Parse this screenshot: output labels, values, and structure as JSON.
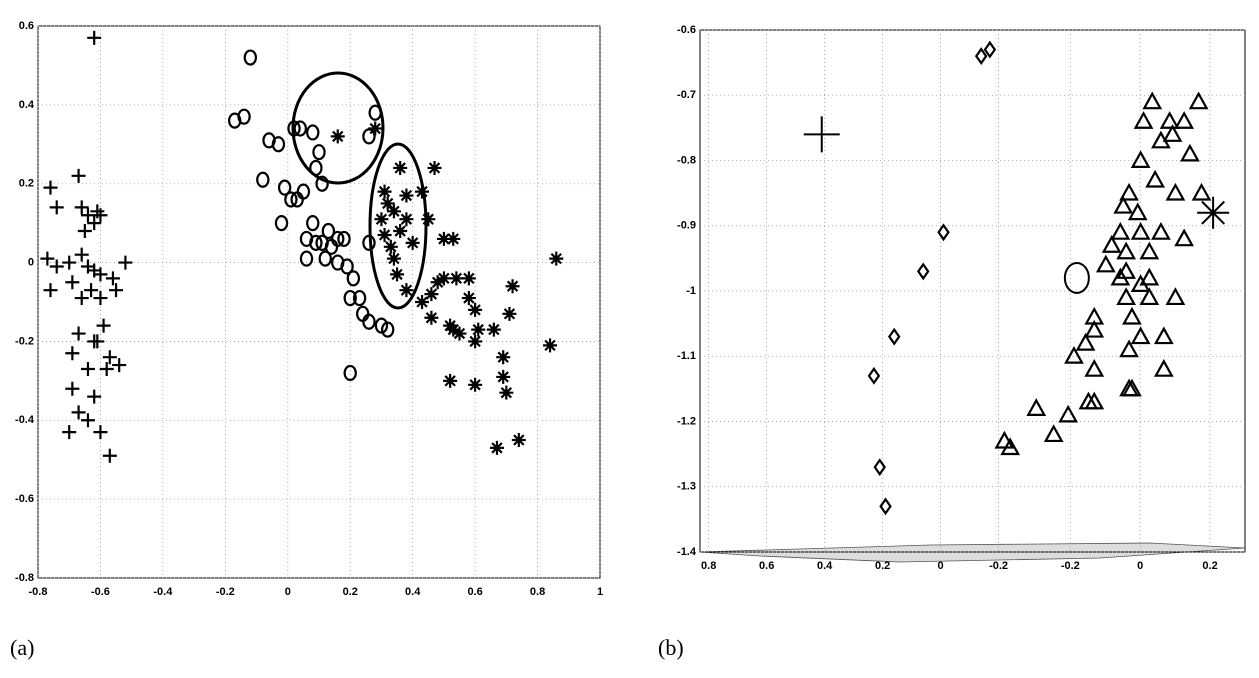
{
  "chart_data": [
    {
      "type": "scatter",
      "label": "(a)",
      "xlim": [
        -0.8,
        1
      ],
      "xticks": [
        -0.8,
        -0.6,
        -0.4,
        -0.2,
        0,
        0.2,
        0.4,
        0.6,
        0.8,
        1
      ],
      "ylim": [
        -0.8,
        0.6
      ],
      "yticks": [
        -0.8,
        -0.6,
        -0.4,
        -0.2,
        0,
        0.2,
        0.4,
        0.6
      ],
      "grid": true,
      "series": [
        {
          "marker": "plus",
          "color": "#000000",
          "size": 7,
          "x": [
            -0.62,
            -0.76,
            -0.74,
            -0.67,
            -0.66,
            -0.64,
            -0.61,
            -0.62,
            -0.65,
            -0.6,
            -0.77,
            -0.74,
            -0.7,
            -0.66,
            -0.64,
            -0.62,
            -0.6,
            -0.56,
            -0.52,
            -0.76,
            -0.69,
            -0.66,
            -0.63,
            -0.6,
            -0.55,
            -0.59,
            -0.67,
            -0.62,
            -0.69,
            -0.64,
            -0.57,
            -0.54,
            -0.58,
            -0.69,
            -0.62,
            -0.67,
            -0.64,
            -0.7,
            -0.6,
            -0.57,
            -0.61
          ],
          "values": [
            0.57,
            0.19,
            0.14,
            0.22,
            0.14,
            0.12,
            0.13,
            0.1,
            0.08,
            0.12,
            0.01,
            -0.01,
            0.0,
            0.02,
            -0.01,
            -0.02,
            -0.03,
            -0.04,
            0.0,
            -0.07,
            -0.05,
            -0.09,
            -0.07,
            -0.09,
            -0.07,
            -0.16,
            -0.18,
            -0.2,
            -0.23,
            -0.27,
            -0.24,
            -0.26,
            -0.27,
            -0.32,
            -0.34,
            -0.38,
            -0.4,
            -0.43,
            -0.43,
            -0.49,
            -0.2
          ]
        },
        {
          "marker": "circle",
          "color": "#000000",
          "size": 7,
          "x": [
            -0.12,
            -0.17,
            -0.14,
            -0.08,
            -0.06,
            -0.03,
            0.02,
            0.04,
            0.08,
            0.1,
            0.09,
            0.11,
            0.05,
            -0.01,
            0.01,
            0.03,
            -0.02,
            0.06,
            0.08,
            0.09,
            0.11,
            0.13,
            0.14,
            0.16,
            0.18,
            0.06,
            0.12,
            0.16,
            0.19,
            0.21,
            0.2,
            0.23,
            0.24,
            0.26,
            0.3,
            0.32,
            0.26,
            0.28,
            0.26,
            0.2
          ],
          "values": [
            0.52,
            0.36,
            0.37,
            0.21,
            0.31,
            0.3,
            0.34,
            0.34,
            0.33,
            0.28,
            0.24,
            0.2,
            0.18,
            0.19,
            0.16,
            0.16,
            0.1,
            0.06,
            0.1,
            0.05,
            0.05,
            0.08,
            0.04,
            0.06,
            0.06,
            0.01,
            0.01,
            0.0,
            -0.01,
            -0.04,
            -0.09,
            -0.09,
            -0.13,
            -0.15,
            -0.16,
            -0.17,
            0.05,
            0.38,
            0.32,
            -0.28
          ]
        },
        {
          "marker": "asterisk",
          "color": "#000000",
          "size": 7,
          "x": [
            0.16,
            0.28,
            0.36,
            0.38,
            0.31,
            0.32,
            0.34,
            0.3,
            0.38,
            0.31,
            0.36,
            0.33,
            0.4,
            0.34,
            0.43,
            0.45,
            0.47,
            0.5,
            0.53,
            0.35,
            0.38,
            0.43,
            0.46,
            0.48,
            0.5,
            0.54,
            0.58,
            0.58,
            0.46,
            0.52,
            0.53,
            0.6,
            0.61,
            0.66,
            0.72,
            0.71,
            0.6,
            0.86,
            0.84,
            0.69,
            0.69,
            0.7,
            0.52,
            0.6,
            0.67,
            0.74,
            0.55
          ],
          "values": [
            0.32,
            0.34,
            0.24,
            0.17,
            0.18,
            0.15,
            0.13,
            0.11,
            0.11,
            0.07,
            0.08,
            0.04,
            0.05,
            0.01,
            0.18,
            0.11,
            0.24,
            0.06,
            0.06,
            -0.03,
            -0.07,
            -0.1,
            -0.08,
            -0.05,
            -0.04,
            -0.04,
            -0.04,
            -0.09,
            -0.14,
            -0.16,
            -0.17,
            -0.12,
            -0.17,
            -0.17,
            -0.06,
            -0.13,
            -0.2,
            0.01,
            -0.21,
            -0.24,
            -0.29,
            -0.33,
            -0.3,
            -0.31,
            -0.47,
            -0.45,
            -0.18
          ]
        }
      ]
    },
    {
      "type": "scatter",
      "label": "(b)",
      "xlim": [
        0.83,
        -1.05
      ],
      "xticks": [
        0.8,
        0.6,
        0.4,
        0.2,
        0,
        -0.2
      ],
      "x2lim": [
        -1.26,
        0.3
      ],
      "x2ticks": [
        -0.2,
        0,
        0.2
      ],
      "ylim": [
        -1.4,
        -0.6
      ],
      "yticks": [
        -1.4,
        -1.3,
        -1.2,
        -1.1,
        -1,
        -0.9,
        -0.8,
        -0.7,
        -0.6
      ],
      "grid": true,
      "series": [
        {
          "marker": "diamond",
          "color": "#000000",
          "size": 7,
          "x": [
            -0.14,
            -0.17,
            -0.01,
            0.06,
            0.16,
            0.23,
            0.21,
            0.19
          ],
          "values": [
            -0.64,
            -0.63,
            -0.91,
            -0.97,
            -1.07,
            -1.13,
            -1.27,
            -1.33
          ]
        },
        {
          "marker": "triangle",
          "color": "#000000",
          "size": 8,
          "x": [
            -0.73,
            -0.89,
            -0.7,
            -0.79,
            -0.84,
            -0.76,
            -0.8,
            -0.86,
            -0.69,
            -0.74,
            -0.81,
            -0.9,
            -0.65,
            -0.63,
            -0.68,
            -0.62,
            -0.69,
            -0.59,
            -0.64,
            -0.76,
            -0.84,
            -0.57,
            -0.64,
            -0.72,
            -0.72,
            -0.62,
            -0.69,
            -0.64,
            -0.72,
            -0.81,
            -0.66,
            -0.53,
            -0.53,
            -0.5,
            -0.69,
            -0.65,
            -0.77,
            -0.46,
            -0.53,
            -0.77,
            -0.65,
            -0.66,
            -0.51,
            -0.53,
            -0.33,
            -0.44,
            -0.39,
            -0.22,
            -0.24
          ],
          "values": [
            -0.71,
            -0.71,
            -0.74,
            -0.74,
            -0.74,
            -0.77,
            -0.76,
            -0.79,
            -0.8,
            -0.83,
            -0.85,
            -0.85,
            -0.85,
            -0.87,
            -0.88,
            -0.91,
            -0.91,
            -0.93,
            -0.94,
            -0.91,
            -0.92,
            -0.96,
            -0.97,
            -0.94,
            -0.98,
            -0.98,
            -0.99,
            -1.01,
            -1.01,
            -1.01,
            -1.04,
            -1.04,
            -1.06,
            -1.08,
            -1.07,
            -1.09,
            -1.07,
            -1.1,
            -1.12,
            -1.12,
            -1.15,
            -1.15,
            -1.17,
            -1.17,
            -1.18,
            -1.19,
            -1.22,
            -1.23,
            -1.24
          ]
        },
        {
          "marker": "plus",
          "color": "#000000",
          "size": 18,
          "x": [
            0.41
          ],
          "values": [
            -0.76
          ]
        },
        {
          "marker": "circle",
          "color": "#000000",
          "size": 15,
          "x": [
            -0.47
          ],
          "values": [
            -0.98
          ]
        },
        {
          "marker": "asterisk",
          "color": "#000000",
          "size": 16,
          "x": [
            -0.94
          ],
          "values": [
            -0.88
          ]
        }
      ]
    }
  ]
}
